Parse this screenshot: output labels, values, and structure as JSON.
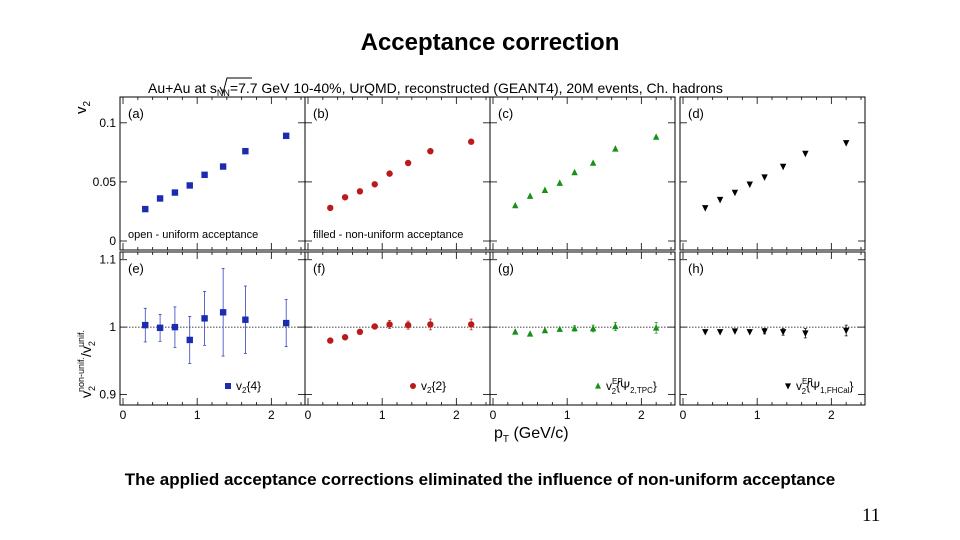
{
  "slide": {
    "title": "Acceptance correction",
    "caption": "The applied acceptance corrections eliminated the influence of non-uniform acceptance",
    "page_number": "11"
  },
  "chart_data": {
    "type": "scatter",
    "title": {
      "prefix": "Au+Au at",
      "sqrt_text": "s",
      "sqrt_sub": "NN",
      "suffix": "=7.7 GeV 10-40%, UrQMD, reconstructed (GEANT4), 20M events, Ch. hadrons"
    },
    "xlabel": {
      "main": "p",
      "sub": "T",
      "rest": " (GeV/c)"
    },
    "xlim": [
      0,
      2.4
    ],
    "x_ticks": [
      "0",
      "1",
      "2"
    ],
    "top_row": {
      "ylabel": {
        "main": "v",
        "sub": "2"
      },
      "ylim": [
        0,
        0.11
      ],
      "y_ticks": [
        {
          "v": 0,
          "t": "0"
        },
        {
          "v": 0.05,
          "t": "0.05"
        },
        {
          "v": 0.1,
          "t": "0.1"
        }
      ]
    },
    "bottom_row": {
      "ylabel": {
        "num": "v",
        "num_sub": "2",
        "num_sup": "non-unif.",
        "den": "v",
        "den_sub": "2",
        "den_sup": "unif."
      },
      "ylim": [
        0.88,
        1.11
      ],
      "y_ticks": [
        {
          "v": 0.9,
          "t": "0.9"
        },
        {
          "v": 1.0,
          "t": "1"
        },
        {
          "v": 1.1,
          "t": "1.1"
        }
      ],
      "reference_line": 1.0
    },
    "colors": {
      "blue": "#1c2bb0",
      "red": "#bb1a1a",
      "green": "#169016",
      "black": "#000000"
    },
    "panels": [
      {
        "label": "(a)",
        "row": "top",
        "col": 0,
        "marker": "square",
        "color": "blue",
        "note": "open - uniform acceptance",
        "points": [
          {
            "x": 0.3,
            "y": 0.027
          },
          {
            "x": 0.5,
            "y": 0.036
          },
          {
            "x": 0.7,
            "y": 0.041
          },
          {
            "x": 0.9,
            "y": 0.047
          },
          {
            "x": 1.1,
            "y": 0.056
          },
          {
            "x": 1.35,
            "y": 0.063
          },
          {
            "x": 1.65,
            "y": 0.076
          },
          {
            "x": 2.2,
            "y": 0.089
          }
        ]
      },
      {
        "label": "(b)",
        "row": "top",
        "col": 1,
        "marker": "circle",
        "color": "red",
        "note": "filled - non-uniform acceptance",
        "points": [
          {
            "x": 0.3,
            "y": 0.028
          },
          {
            "x": 0.5,
            "y": 0.037
          },
          {
            "x": 0.7,
            "y": 0.042
          },
          {
            "x": 0.9,
            "y": 0.048
          },
          {
            "x": 1.1,
            "y": 0.057
          },
          {
            "x": 1.35,
            "y": 0.066
          },
          {
            "x": 1.65,
            "y": 0.076
          },
          {
            "x": 2.2,
            "y": 0.084
          }
        ]
      },
      {
        "label": "(c)",
        "row": "top",
        "col": 2,
        "marker": "triangle-up",
        "color": "green",
        "note": "",
        "points": [
          {
            "x": 0.3,
            "y": 0.03
          },
          {
            "x": 0.5,
            "y": 0.038
          },
          {
            "x": 0.7,
            "y": 0.043
          },
          {
            "x": 0.9,
            "y": 0.049
          },
          {
            "x": 1.1,
            "y": 0.058
          },
          {
            "x": 1.35,
            "y": 0.066
          },
          {
            "x": 1.65,
            "y": 0.078
          },
          {
            "x": 2.2,
            "y": 0.088
          }
        ]
      },
      {
        "label": "(d)",
        "row": "top",
        "col": 3,
        "marker": "triangle-down",
        "color": "black",
        "note": "",
        "points": [
          {
            "x": 0.3,
            "y": 0.028
          },
          {
            "x": 0.5,
            "y": 0.035
          },
          {
            "x": 0.7,
            "y": 0.041
          },
          {
            "x": 0.9,
            "y": 0.048
          },
          {
            "x": 1.1,
            "y": 0.054
          },
          {
            "x": 1.35,
            "y": 0.063
          },
          {
            "x": 1.65,
            "y": 0.074
          },
          {
            "x": 2.2,
            "y": 0.083
          }
        ]
      },
      {
        "label": "(e)",
        "row": "bottom",
        "col": 0,
        "marker": "square",
        "color": "blue",
        "legend": {
          "main": "v",
          "sub": "2",
          "rest": "{4}"
        },
        "points": [
          {
            "x": 0.3,
            "y": 1.003,
            "err": 0.025
          },
          {
            "x": 0.5,
            "y": 0.999,
            "err": 0.02
          },
          {
            "x": 0.7,
            "y": 1.0,
            "err": 0.03
          },
          {
            "x": 0.9,
            "y": 0.981,
            "err": 0.035
          },
          {
            "x": 1.1,
            "y": 1.013,
            "err": 0.04
          },
          {
            "x": 1.35,
            "y": 1.022,
            "err": 0.065
          },
          {
            "x": 1.65,
            "y": 1.011,
            "err": 0.05
          },
          {
            "x": 2.2,
            "y": 1.006,
            "err": 0.035
          }
        ]
      },
      {
        "label": "(f)",
        "row": "bottom",
        "col": 1,
        "marker": "circle",
        "color": "red",
        "legend": {
          "main": "v",
          "sub": "2",
          "rest": "{2}"
        },
        "points": [
          {
            "x": 0.3,
            "y": 0.98
          },
          {
            "x": 0.5,
            "y": 0.985
          },
          {
            "x": 0.7,
            "y": 0.993
          },
          {
            "x": 0.9,
            "y": 1.001
          },
          {
            "x": 1.1,
            "y": 1.004,
            "err": 0.006
          },
          {
            "x": 1.35,
            "y": 1.003,
            "err": 0.006
          },
          {
            "x": 1.65,
            "y": 1.004,
            "err": 0.008
          },
          {
            "x": 2.2,
            "y": 1.004,
            "err": 0.008
          }
        ]
      },
      {
        "label": "(g)",
        "row": "bottom",
        "col": 2,
        "marker": "triangle-up",
        "color": "green",
        "legend": {
          "main": "v",
          "sub": "2",
          "sup": "EP",
          "rest": "{Ψ",
          "rest_sub": "2,TPC",
          "close": "}"
        },
        "points": [
          {
            "x": 0.3,
            "y": 0.993
          },
          {
            "x": 0.5,
            "y": 0.99
          },
          {
            "x": 0.7,
            "y": 0.995
          },
          {
            "x": 0.9,
            "y": 0.997
          },
          {
            "x": 1.1,
            "y": 0.998,
            "err": 0.004
          },
          {
            "x": 1.35,
            "y": 0.998,
            "err": 0.005
          },
          {
            "x": 1.65,
            "y": 1.001,
            "err": 0.006
          },
          {
            "x": 2.2,
            "y": 0.999,
            "err": 0.008
          }
        ]
      },
      {
        "label": "(h)",
        "row": "bottom",
        "col": 3,
        "marker": "triangle-down",
        "color": "black",
        "legend": {
          "main": "v",
          "sub": "2",
          "sup": "EP",
          "rest": "{Ψ",
          "rest_sub": "1,FHCal",
          "close": "}"
        },
        "points": [
          {
            "x": 0.3,
            "y": 0.993
          },
          {
            "x": 0.5,
            "y": 0.993
          },
          {
            "x": 0.7,
            "y": 0.994
          },
          {
            "x": 0.9,
            "y": 0.993
          },
          {
            "x": 1.1,
            "y": 0.994,
            "err": 0.004
          },
          {
            "x": 1.35,
            "y": 0.993,
            "err": 0.005
          },
          {
            "x": 1.65,
            "y": 0.991,
            "err": 0.007
          },
          {
            "x": 2.2,
            "y": 0.995,
            "err": 0.008
          }
        ]
      }
    ]
  }
}
